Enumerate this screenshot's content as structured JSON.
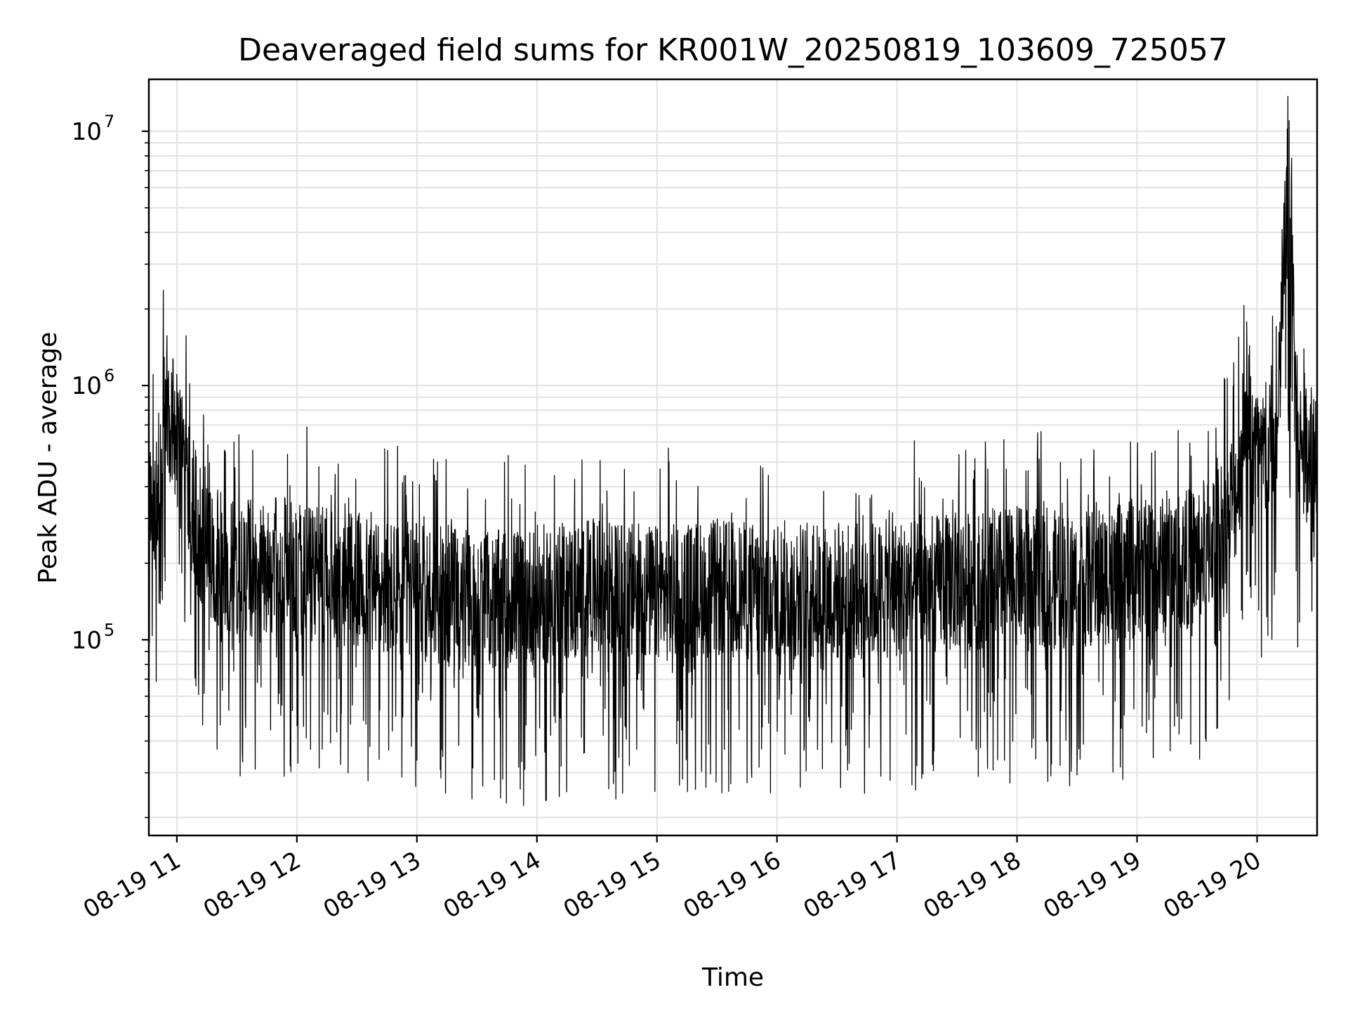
{
  "chart_data": {
    "type": "line",
    "title": "Deaveraged field sums for KR001W_20250819_103609_725057",
    "xlabel": "Time",
    "ylabel": "Peak ADU - average",
    "y_scale": "log",
    "ylim": [
      17000,
      16000000
    ],
    "xlim": [
      "2025-08-19T10:46",
      "2025-08-19T20:30"
    ],
    "x_ticks": [
      {
        "time": "2025-08-19T11:00",
        "label": "08-19 11"
      },
      {
        "time": "2025-08-19T12:00",
        "label": "08-19 12"
      },
      {
        "time": "2025-08-19T13:00",
        "label": "08-19 13"
      },
      {
        "time": "2025-08-19T14:00",
        "label": "08-19 14"
      },
      {
        "time": "2025-08-19T15:00",
        "label": "08-19 15"
      },
      {
        "time": "2025-08-19T16:00",
        "label": "08-19 16"
      },
      {
        "time": "2025-08-19T17:00",
        "label": "08-19 17"
      },
      {
        "time": "2025-08-19T18:00",
        "label": "08-19 18"
      },
      {
        "time": "2025-08-19T19:00",
        "label": "08-19 19"
      },
      {
        "time": "2025-08-19T20:00",
        "label": "08-19 20"
      }
    ],
    "y_ticks": [
      {
        "value": 100000,
        "base": "10",
        "exp": "5"
      },
      {
        "value": 1000000,
        "base": "10",
        "exp": "6"
      },
      {
        "value": 10000000,
        "base": "10",
        "exp": "7"
      }
    ],
    "grid": true,
    "line_color": "#000000",
    "series": [
      {
        "x": [
          "2025-08-19T10:46",
          "2025-08-19T10:50",
          "2025-08-19T10:55",
          "2025-08-19T11:00",
          "2025-08-19T11:05",
          "2025-08-19T11:10",
          "2025-08-19T11:15",
          "2025-08-19T11:20",
          "2025-08-19T11:30",
          "2025-08-19T11:45",
          "2025-08-19T12:00",
          "2025-08-19T12:15",
          "2025-08-19T12:30",
          "2025-08-19T12:45",
          "2025-08-19T13:00",
          "2025-08-19T13:15",
          "2025-08-19T13:30",
          "2025-08-19T13:45",
          "2025-08-19T14:00",
          "2025-08-19T14:15",
          "2025-08-19T14:30",
          "2025-08-19T14:45",
          "2025-08-19T15:00",
          "2025-08-19T15:15",
          "2025-08-19T15:30",
          "2025-08-19T15:45",
          "2025-08-19T16:00",
          "2025-08-19T16:15",
          "2025-08-19T16:30",
          "2025-08-19T16:45",
          "2025-08-19T17:00",
          "2025-08-19T17:15",
          "2025-08-19T17:30",
          "2025-08-19T17:45",
          "2025-08-19T18:00",
          "2025-08-19T18:15",
          "2025-08-19T18:30",
          "2025-08-19T18:45",
          "2025-08-19T19:00",
          "2025-08-19T19:15",
          "2025-08-19T19:30",
          "2025-08-19T19:40",
          "2025-08-19T19:50",
          "2025-08-19T19:55",
          "2025-08-19T20:00",
          "2025-08-19T20:10",
          "2025-08-19T20:16",
          "2025-08-19T20:20",
          "2025-08-19T20:30"
        ],
        "y": [
          300000,
          380000,
          1000000,
          600000,
          450000,
          300000,
          250000,
          220000,
          200000,
          210000,
          200000,
          190000,
          180000,
          170000,
          165000,
          160000,
          150000,
          155000,
          160000,
          165000,
          170000,
          165000,
          160000,
          165000,
          170000,
          165000,
          170000,
          165000,
          160000,
          165000,
          170000,
          175000,
          180000,
          185000,
          190000,
          185000,
          180000,
          190000,
          200000,
          210000,
          230000,
          280000,
          420000,
          1100000,
          550000,
          600000,
          11000000,
          650000,
          620000
        ]
      }
    ]
  }
}
